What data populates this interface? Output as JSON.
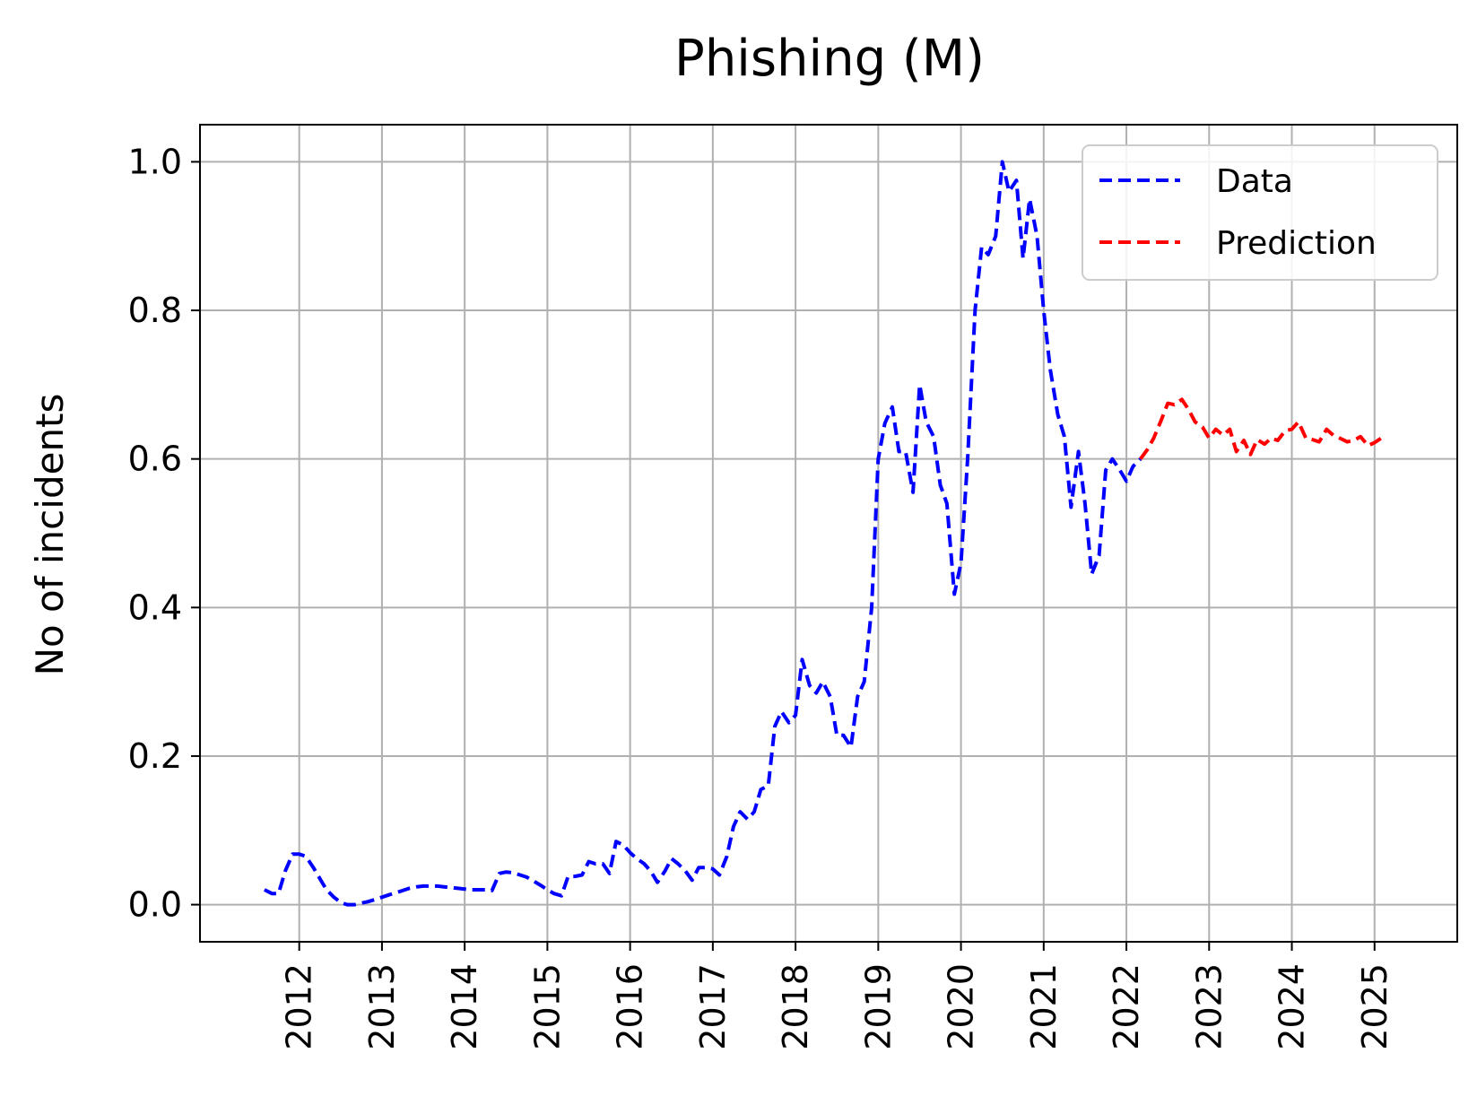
{
  "chart_data": {
    "type": "line",
    "title": "Phishing (M)",
    "xlabel": "",
    "ylabel": "No of incidents",
    "xlim": [
      2010.8,
      2026.0
    ],
    "ylim": [
      -0.05,
      1.05
    ],
    "x_ticks": [
      "2012",
      "2013",
      "2014",
      "2015",
      "2016",
      "2017",
      "2018",
      "2019",
      "2020",
      "2021",
      "2022",
      "2023",
      "2024",
      "2025"
    ],
    "y_ticks": [
      "0.0",
      "0.2",
      "0.4",
      "0.6",
      "0.8",
      "1.0"
    ],
    "grid": true,
    "legend_position": "top-right",
    "series": [
      {
        "name": "Data",
        "color": "#0000ff",
        "style": "dashed",
        "points": [
          [
            2011.58,
            0.02
          ],
          [
            2011.67,
            0.015
          ],
          [
            2011.75,
            0.015
          ],
          [
            2011.83,
            0.045
          ],
          [
            2011.92,
            0.068
          ],
          [
            2012.0,
            0.068
          ],
          [
            2012.08,
            0.065
          ],
          [
            2012.17,
            0.05
          ],
          [
            2012.25,
            0.035
          ],
          [
            2012.33,
            0.02
          ],
          [
            2012.42,
            0.01
          ],
          [
            2012.5,
            0.003
          ],
          [
            2012.58,
            0.0
          ],
          [
            2012.67,
            0.0
          ],
          [
            2012.75,
            0.002
          ],
          [
            2012.83,
            0.004
          ],
          [
            2012.92,
            0.007
          ],
          [
            2013.0,
            0.01
          ],
          [
            2013.08,
            0.013
          ],
          [
            2013.17,
            0.016
          ],
          [
            2013.25,
            0.019
          ],
          [
            2013.33,
            0.022
          ],
          [
            2013.42,
            0.024
          ],
          [
            2013.5,
            0.025
          ],
          [
            2013.58,
            0.025
          ],
          [
            2013.67,
            0.025
          ],
          [
            2013.75,
            0.024
          ],
          [
            2013.83,
            0.023
          ],
          [
            2013.92,
            0.022
          ],
          [
            2014.0,
            0.021
          ],
          [
            2014.08,
            0.02
          ],
          [
            2014.17,
            0.02
          ],
          [
            2014.25,
            0.02
          ],
          [
            2014.33,
            0.019
          ],
          [
            2014.42,
            0.042
          ],
          [
            2014.5,
            0.044
          ],
          [
            2014.58,
            0.043
          ],
          [
            2014.67,
            0.04
          ],
          [
            2014.75,
            0.037
          ],
          [
            2014.83,
            0.032
          ],
          [
            2014.92,
            0.026
          ],
          [
            2015.0,
            0.02
          ],
          [
            2015.08,
            0.015
          ],
          [
            2015.17,
            0.012
          ],
          [
            2015.25,
            0.038
          ],
          [
            2015.33,
            0.038
          ],
          [
            2015.42,
            0.04
          ],
          [
            2015.5,
            0.058
          ],
          [
            2015.58,
            0.055
          ],
          [
            2015.67,
            0.055
          ],
          [
            2015.75,
            0.042
          ],
          [
            2015.83,
            0.085
          ],
          [
            2015.92,
            0.08
          ],
          [
            2016.0,
            0.07
          ],
          [
            2016.08,
            0.062
          ],
          [
            2016.17,
            0.055
          ],
          [
            2016.25,
            0.045
          ],
          [
            2016.33,
            0.03
          ],
          [
            2016.42,
            0.045
          ],
          [
            2016.5,
            0.062
          ],
          [
            2016.58,
            0.055
          ],
          [
            2016.67,
            0.045
          ],
          [
            2016.75,
            0.033
          ],
          [
            2016.83,
            0.05
          ],
          [
            2016.92,
            0.05
          ],
          [
            2017.0,
            0.048
          ],
          [
            2017.08,
            0.04
          ],
          [
            2017.17,
            0.065
          ],
          [
            2017.25,
            0.105
          ],
          [
            2017.33,
            0.125
          ],
          [
            2017.42,
            0.115
          ],
          [
            2017.5,
            0.125
          ],
          [
            2017.58,
            0.155
          ],
          [
            2017.67,
            0.16
          ],
          [
            2017.75,
            0.24
          ],
          [
            2017.83,
            0.26
          ],
          [
            2017.92,
            0.245
          ],
          [
            2018.0,
            0.255
          ],
          [
            2018.08,
            0.33
          ],
          [
            2018.17,
            0.295
          ],
          [
            2018.25,
            0.285
          ],
          [
            2018.33,
            0.3
          ],
          [
            2018.42,
            0.28
          ],
          [
            2018.5,
            0.228
          ],
          [
            2018.58,
            0.228
          ],
          [
            2018.67,
            0.212
          ],
          [
            2018.75,
            0.28
          ],
          [
            2018.83,
            0.3
          ],
          [
            2018.92,
            0.4
          ],
          [
            2019.0,
            0.6
          ],
          [
            2019.08,
            0.648
          ],
          [
            2019.17,
            0.67
          ],
          [
            2019.25,
            0.61
          ],
          [
            2019.33,
            0.61
          ],
          [
            2019.42,
            0.555
          ],
          [
            2019.5,
            0.7
          ],
          [
            2019.58,
            0.65
          ],
          [
            2019.67,
            0.63
          ],
          [
            2019.75,
            0.565
          ],
          [
            2019.83,
            0.54
          ],
          [
            2019.92,
            0.418
          ],
          [
            2020.0,
            0.46
          ],
          [
            2020.08,
            0.6
          ],
          [
            2020.17,
            0.8
          ],
          [
            2020.25,
            0.885
          ],
          [
            2020.33,
            0.875
          ],
          [
            2020.42,
            0.9
          ],
          [
            2020.5,
            1.0
          ],
          [
            2020.58,
            0.96
          ],
          [
            2020.67,
            0.975
          ],
          [
            2020.75,
            0.87
          ],
          [
            2020.83,
            0.95
          ],
          [
            2020.92,
            0.9
          ],
          [
            2021.0,
            0.8
          ],
          [
            2021.08,
            0.72
          ],
          [
            2021.17,
            0.66
          ],
          [
            2021.25,
            0.63
          ],
          [
            2021.33,
            0.535
          ],
          [
            2021.42,
            0.61
          ],
          [
            2021.5,
            0.54
          ],
          [
            2021.58,
            0.445
          ],
          [
            2021.67,
            0.47
          ],
          [
            2021.75,
            0.585
          ],
          [
            2021.83,
            0.6
          ],
          [
            2021.92,
            0.585
          ],
          [
            2022.0,
            0.57
          ],
          [
            2022.08,
            0.59
          ],
          [
            2022.17,
            0.6
          ]
        ]
      },
      {
        "name": "Prediction",
        "color": "#ff0000",
        "style": "dashed",
        "points": [
          [
            2022.17,
            0.6
          ],
          [
            2022.25,
            0.612
          ],
          [
            2022.33,
            0.628
          ],
          [
            2022.42,
            0.652
          ],
          [
            2022.5,
            0.675
          ],
          [
            2022.58,
            0.673
          ],
          [
            2022.67,
            0.68
          ],
          [
            2022.75,
            0.667
          ],
          [
            2022.83,
            0.65
          ],
          [
            2022.92,
            0.643
          ],
          [
            2023.0,
            0.628
          ],
          [
            2023.08,
            0.64
          ],
          [
            2023.17,
            0.632
          ],
          [
            2023.25,
            0.64
          ],
          [
            2023.33,
            0.61
          ],
          [
            2023.42,
            0.625
          ],
          [
            2023.5,
            0.606
          ],
          [
            2023.58,
            0.626
          ],
          [
            2023.67,
            0.62
          ],
          [
            2023.75,
            0.628
          ],
          [
            2023.83,
            0.625
          ],
          [
            2023.92,
            0.638
          ],
          [
            2024.0,
            0.64
          ],
          [
            2024.08,
            0.65
          ],
          [
            2024.17,
            0.628
          ],
          [
            2024.25,
            0.626
          ],
          [
            2024.33,
            0.623
          ],
          [
            2024.42,
            0.64
          ],
          [
            2024.5,
            0.632
          ],
          [
            2024.58,
            0.628
          ],
          [
            2024.67,
            0.623
          ],
          [
            2024.75,
            0.625
          ],
          [
            2024.83,
            0.63
          ],
          [
            2024.92,
            0.618
          ],
          [
            2025.0,
            0.622
          ],
          [
            2025.08,
            0.628
          ]
        ]
      }
    ]
  }
}
